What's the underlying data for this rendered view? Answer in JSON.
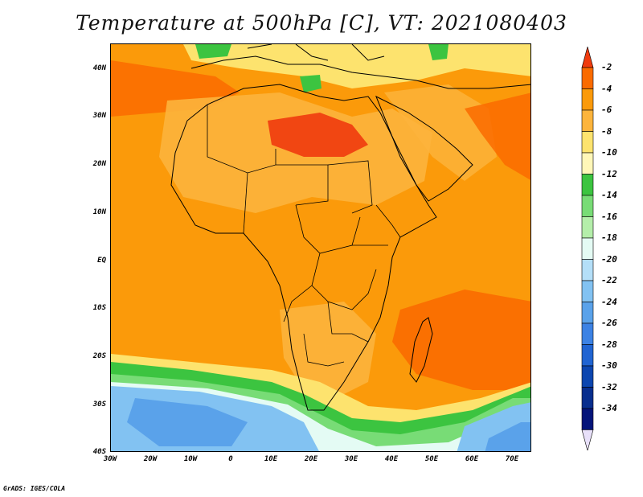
{
  "title": "Temperature at 500hPa [C], VT: 2021080403",
  "credit": "GrADS: IGES/COLA",
  "lat_ticks": [
    "40N",
    "30N",
    "20N",
    "10N",
    "EQ",
    "10S",
    "20S",
    "30S",
    "40S"
  ],
  "lon_ticks": [
    "30W",
    "20W",
    "10W",
    "0",
    "10E",
    "20E",
    "30E",
    "40E",
    "50E",
    "60E",
    "70E"
  ],
  "colorbar": {
    "labels": [
      "-2",
      "-4",
      "-6",
      "-8",
      "-10",
      "-12",
      "-14",
      "-16",
      "-18",
      "-20",
      "-22",
      "-24",
      "-26",
      "-28",
      "-30",
      "-32",
      "-34"
    ],
    "colors": [
      "#f03b0e",
      "#fa6b00",
      "#fb9a0a",
      "#fcb43c",
      "#fde36e",
      "#fff7b8",
      "#3cc440",
      "#78dc76",
      "#b4eeaa",
      "#e4fbf4",
      "#b4dff8",
      "#82c2f2",
      "#5aa2ea",
      "#3c82e4",
      "#2064d2",
      "#0c46b0",
      "#082e8e",
      "#04147a",
      "#e8e0fa"
    ]
  }
}
